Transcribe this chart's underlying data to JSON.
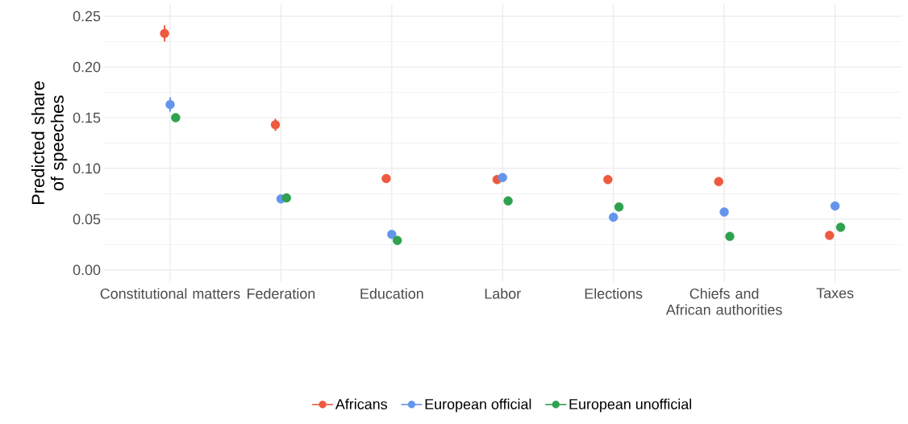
{
  "chart_data": {
    "type": "scatter",
    "ylabel": "Predicted share of speeches",
    "categories": [
      "Constitutional matters",
      "Federation",
      "Education",
      "Labor",
      "Elections",
      "Chiefs and African authorities",
      "Taxes"
    ],
    "series": [
      {
        "name": "Africans",
        "color": "#ee5a3f",
        "values": [
          0.233,
          0.143,
          0.09,
          0.089,
          0.089,
          0.087,
          0.034
        ],
        "errors": [
          0.008,
          0.006,
          null,
          0.004,
          0.004,
          null,
          null
        ]
      },
      {
        "name": "European official",
        "color": "#6495ed",
        "values": [
          0.163,
          0.07,
          0.035,
          0.091,
          0.052,
          0.057,
          0.063
        ],
        "errors": [
          0.007,
          null,
          null,
          null,
          null,
          null,
          null
        ]
      },
      {
        "name": "European unofficial",
        "color": "#2ea24f",
        "values": [
          0.15,
          0.071,
          0.029,
          0.068,
          0.062,
          0.033,
          0.042
        ],
        "errors": [
          null,
          null,
          null,
          null,
          null,
          null,
          null
        ]
      }
    ],
    "ylim": [
      -0.012,
      0.262
    ],
    "yticks": [
      {
        "value": 0,
        "label": "0.00"
      },
      {
        "value": 0.05,
        "label": "0.05"
      },
      {
        "value": 0.1,
        "label": "0.10"
      },
      {
        "value": 0.15,
        "label": "0.15"
      },
      {
        "value": 0.2,
        "label": "0.20"
      },
      {
        "value": 0.25,
        "label": "0.25"
      }
    ],
    "grid": true,
    "legend": "bottom",
    "marker": "circle"
  }
}
